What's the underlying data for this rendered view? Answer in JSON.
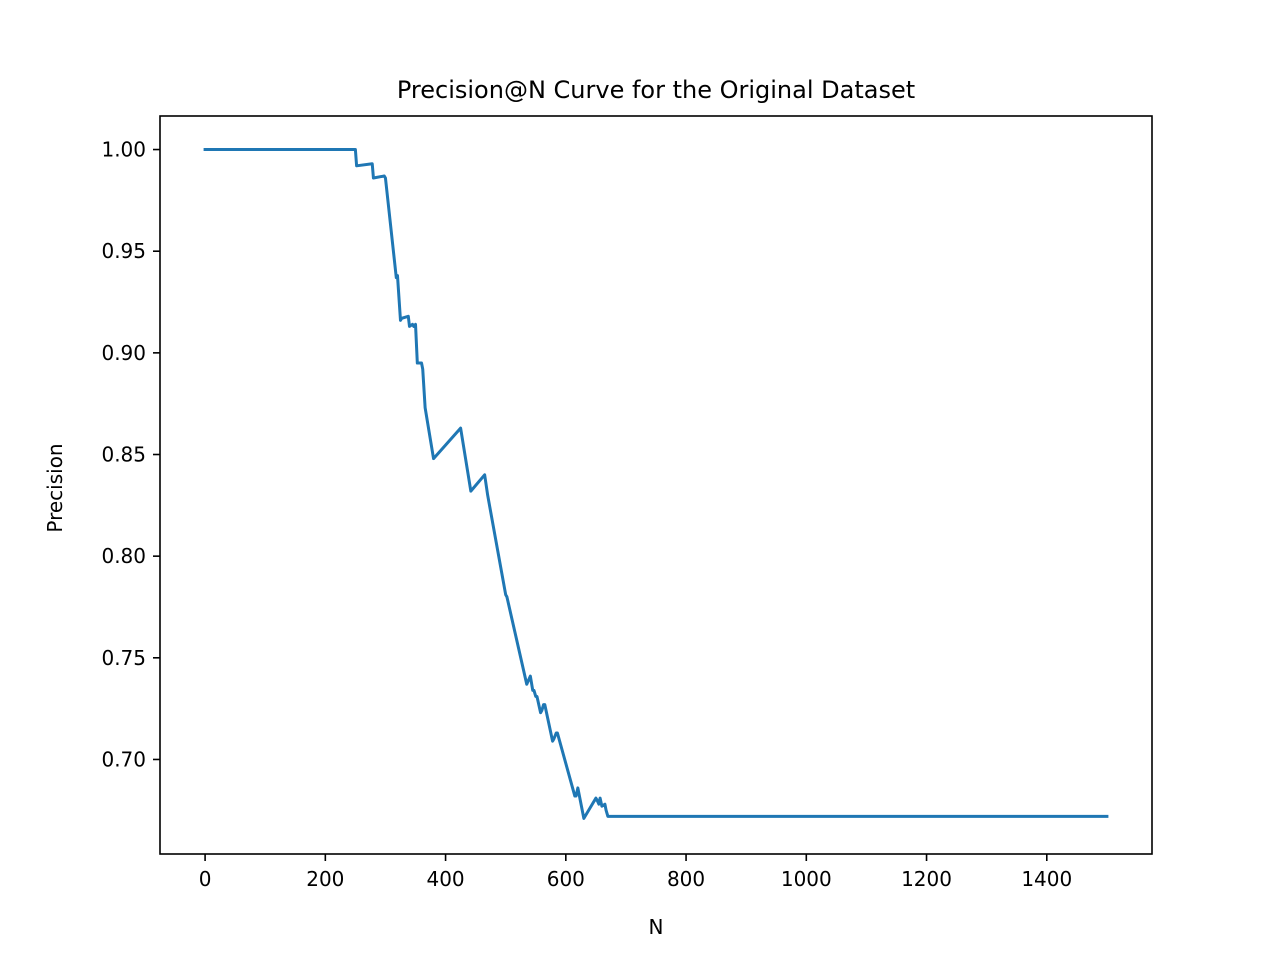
{
  "chart_data": {
    "type": "line",
    "title": "Precision@N Curve for the Original Dataset",
    "xlabel": "N",
    "ylabel": "Precision",
    "xlim": [
      -75,
      1575
    ],
    "ylim": [
      0.6535,
      1.0165
    ],
    "xticks": [
      0,
      200,
      400,
      600,
      800,
      1000,
      1200,
      1400
    ],
    "xtick_labels": [
      "0",
      "200",
      "400",
      "600",
      "800",
      "1000",
      "1200",
      "1400"
    ],
    "yticks": [
      0.7,
      0.75,
      0.8,
      0.85,
      0.9,
      0.95,
      1.0
    ],
    "ytick_labels": [
      "0.70",
      "0.75",
      "0.80",
      "0.85",
      "0.90",
      "0.95",
      "1.00"
    ],
    "grid": false,
    "series_color": "#1f77b4",
    "series": [
      {
        "x": [
          0,
          250,
          252,
          278,
          280,
          298,
          300,
          318,
          320,
          325,
          327,
          338,
          340,
          345,
          347,
          350,
          353,
          360,
          362,
          366,
          380,
          425,
          442,
          465,
          470,
          500,
          502,
          535,
          541,
          545,
          547,
          550,
          552,
          558,
          560,
          563,
          565,
          578,
          580,
          584,
          586,
          615,
          617,
          620,
          630,
          650,
          652,
          655,
          657,
          660,
          665,
          667,
          670,
          672,
          1500
        ],
        "y": [
          1.0,
          1.0,
          0.992,
          0.993,
          0.986,
          0.987,
          0.986,
          0.937,
          0.938,
          0.916,
          0.917,
          0.918,
          0.913,
          0.914,
          0.913,
          0.914,
          0.895,
          0.895,
          0.892,
          0.873,
          0.848,
          0.863,
          0.832,
          0.84,
          0.83,
          0.781,
          0.78,
          0.737,
          0.741,
          0.734,
          0.734,
          0.731,
          0.731,
          0.723,
          0.724,
          0.727,
          0.727,
          0.709,
          0.71,
          0.713,
          0.713,
          0.682,
          0.682,
          0.686,
          0.671,
          0.681,
          0.68,
          0.678,
          0.681,
          0.677,
          0.678,
          0.675,
          0.672,
          0.672,
          0.672
        ]
      }
    ]
  }
}
